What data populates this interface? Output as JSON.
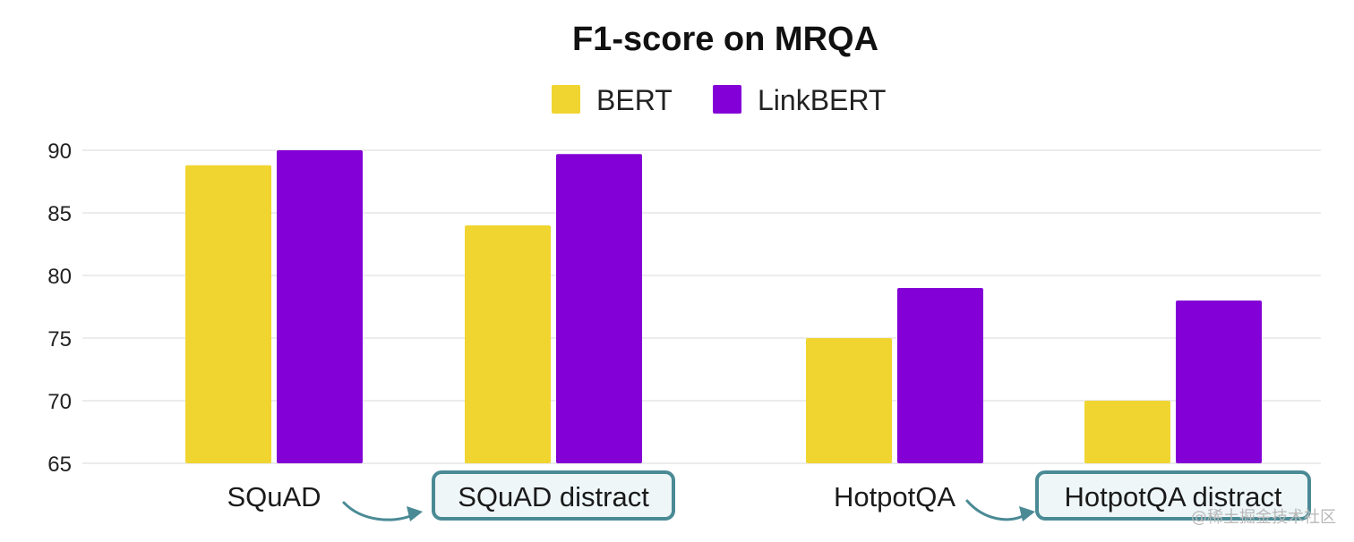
{
  "chart_data": {
    "type": "bar",
    "title": "F1-score on MRQA",
    "categories": [
      "SQuAD",
      "SQuAD distract",
      "HotpotQA",
      "HotpotQA distract"
    ],
    "highlighted_categories": [
      "SQuAD distract",
      "HotpotQA distract"
    ],
    "series": [
      {
        "name": "BERT",
        "color": "#F0D530",
        "values": [
          88.8,
          84.0,
          75.0,
          70.0
        ]
      },
      {
        "name": "LinkBERT",
        "color": "#8300D6",
        "values": [
          90.0,
          89.7,
          79.0,
          78.0
        ]
      }
    ],
    "ylim": [
      65,
      90
    ],
    "yticks": [
      65,
      70,
      75,
      80,
      85,
      90
    ],
    "grid": true,
    "legend_position": "top-center",
    "xlabel": "",
    "ylabel": ""
  },
  "colors": {
    "highlight_border": "#4A8A95",
    "highlight_fill": "#EEF6F7",
    "arrow": "#4A8A95",
    "grid": "#E6E6E6"
  },
  "watermark": "@稀土掘金技术社区"
}
